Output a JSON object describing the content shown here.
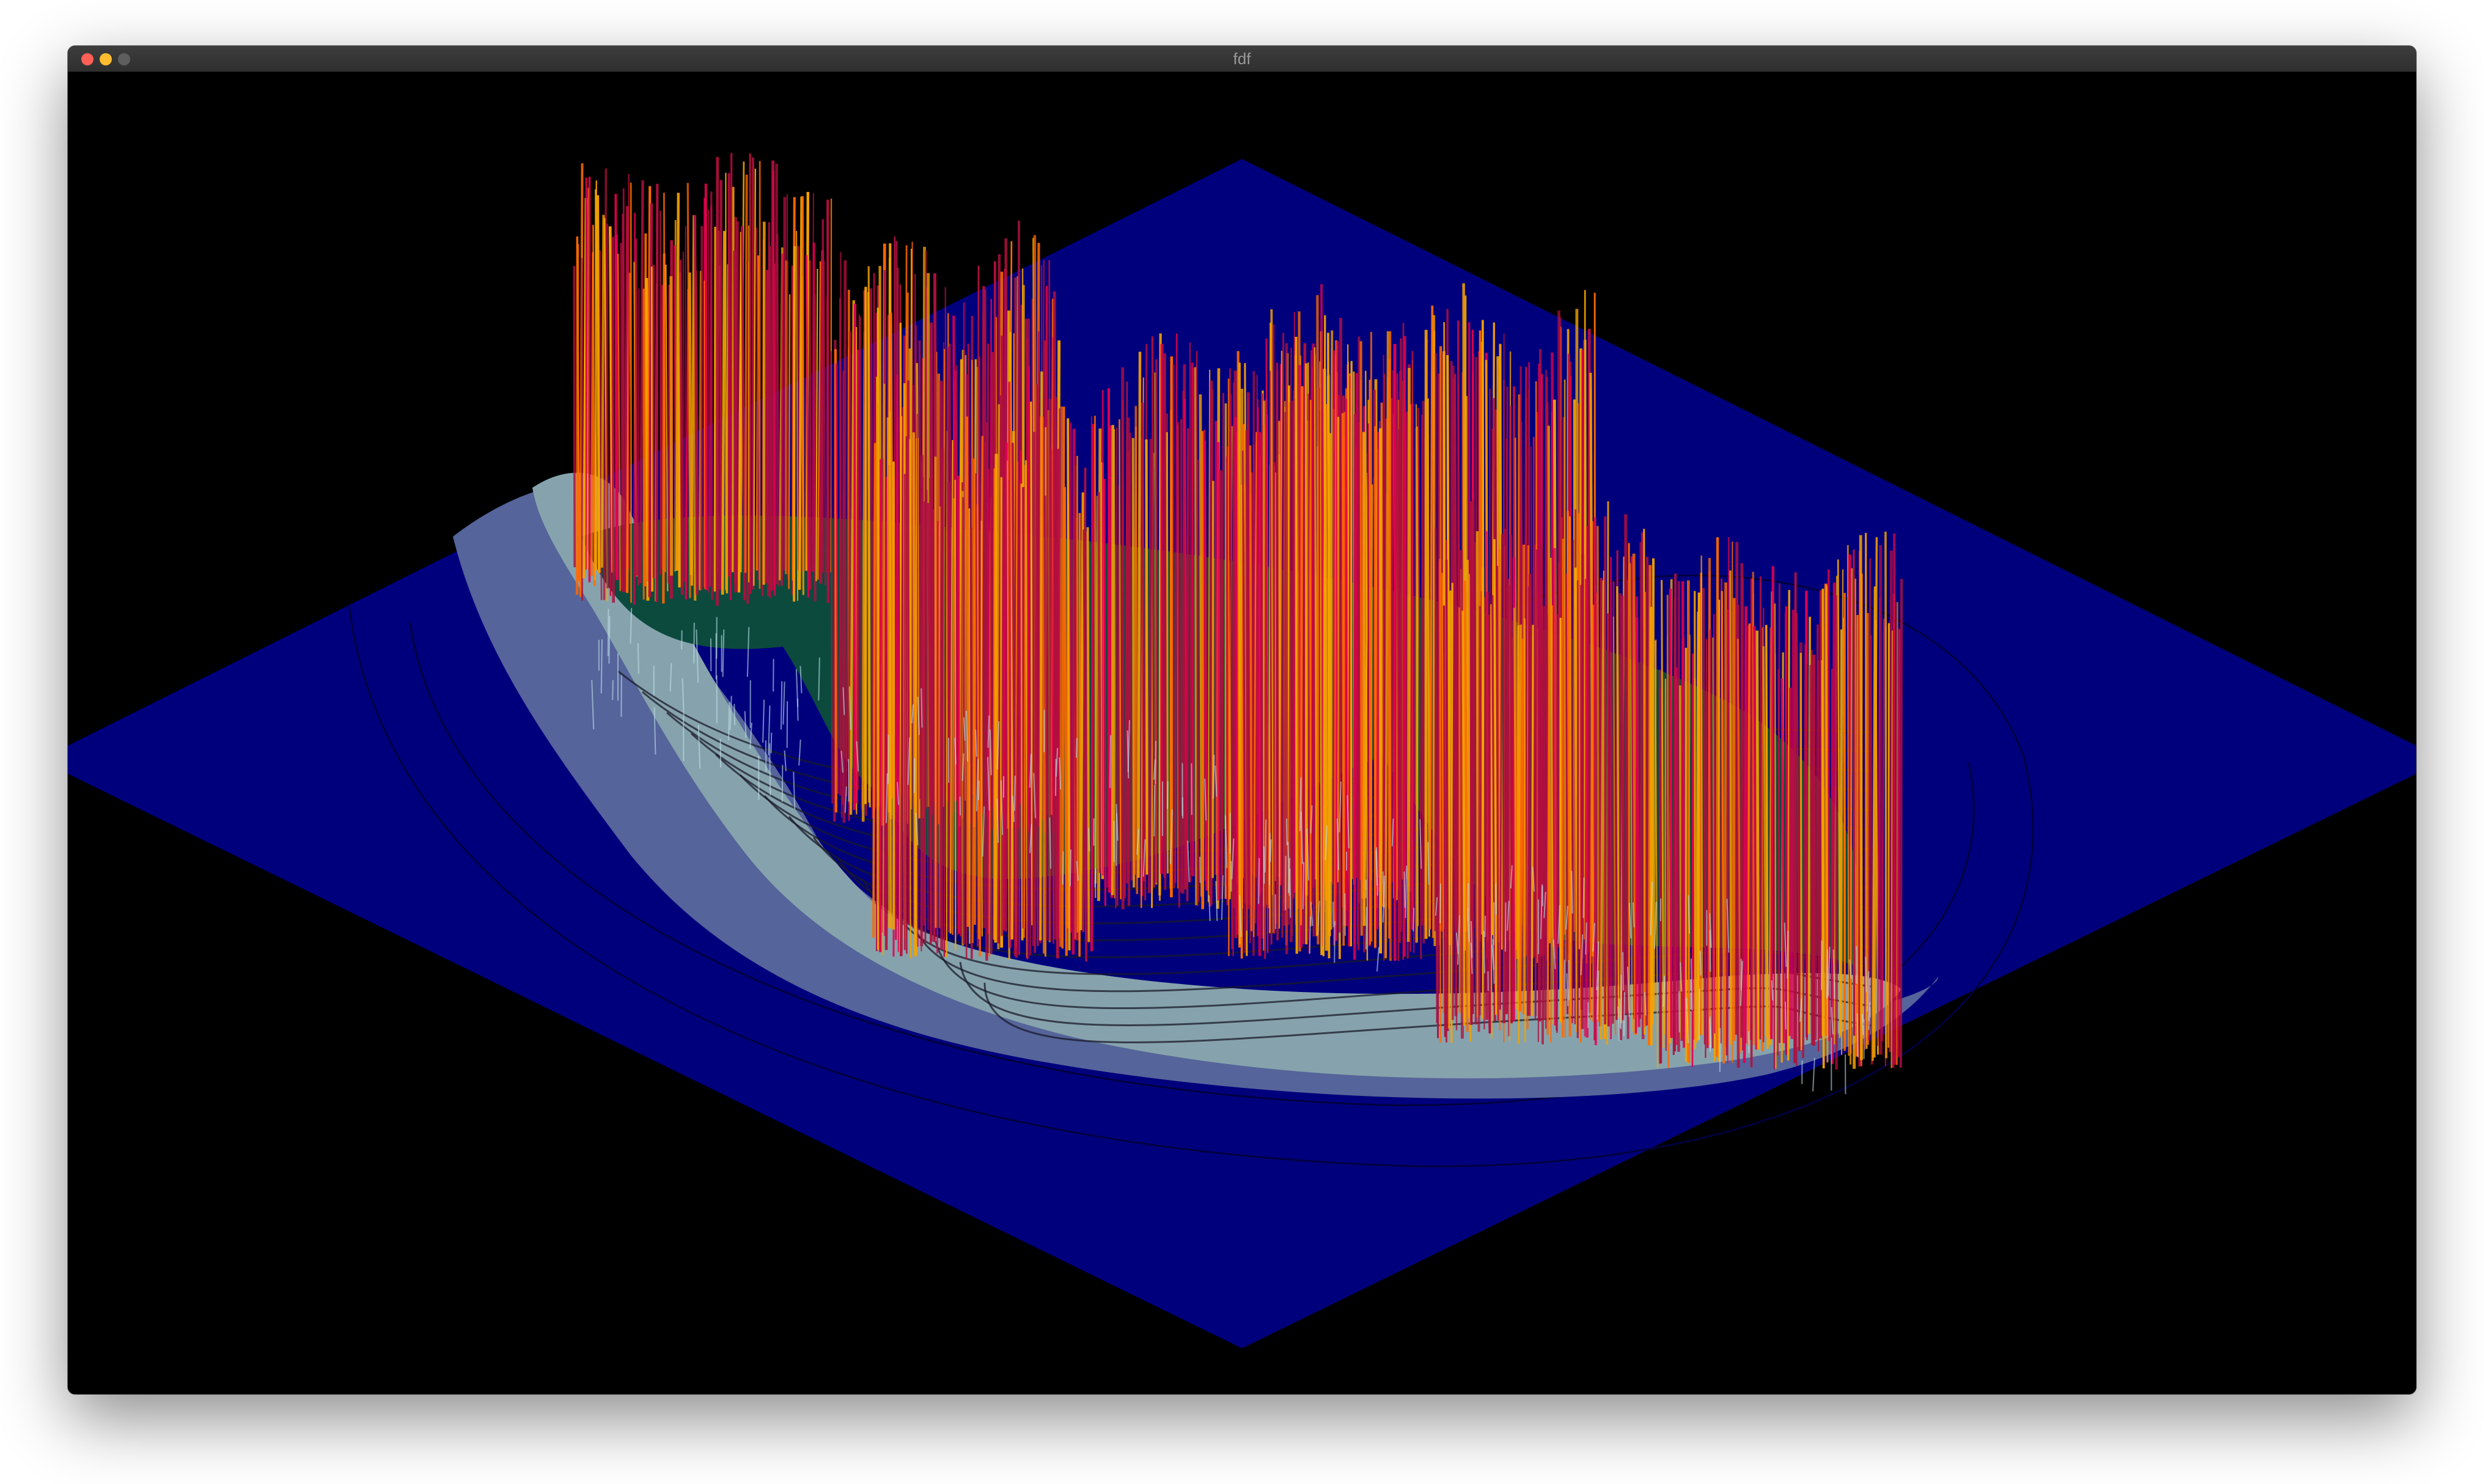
{
  "window": {
    "title": "fdf",
    "controls": {
      "close": {
        "icon": "close-dot-icon",
        "color": "#ff5f57"
      },
      "minimize": {
        "icon": "minimize-dot-icon",
        "color": "#febc2e"
      },
      "zoom": {
        "icon": "zoom-dot-icon",
        "color": "#5e5e5e"
      }
    }
  },
  "render": {
    "background": "#000000",
    "colors": {
      "water": "#00007d",
      "shore": "#55649a",
      "plain": "#86a3ad",
      "lowland": "#0c4a3e",
      "peak": "#b0103e",
      "peak_alt": "#e2004e",
      "gold": "#f4a200",
      "orange": "#ff6a00",
      "contour": "#1a1a2a",
      "wire_light": "#bfe0ea"
    }
  }
}
